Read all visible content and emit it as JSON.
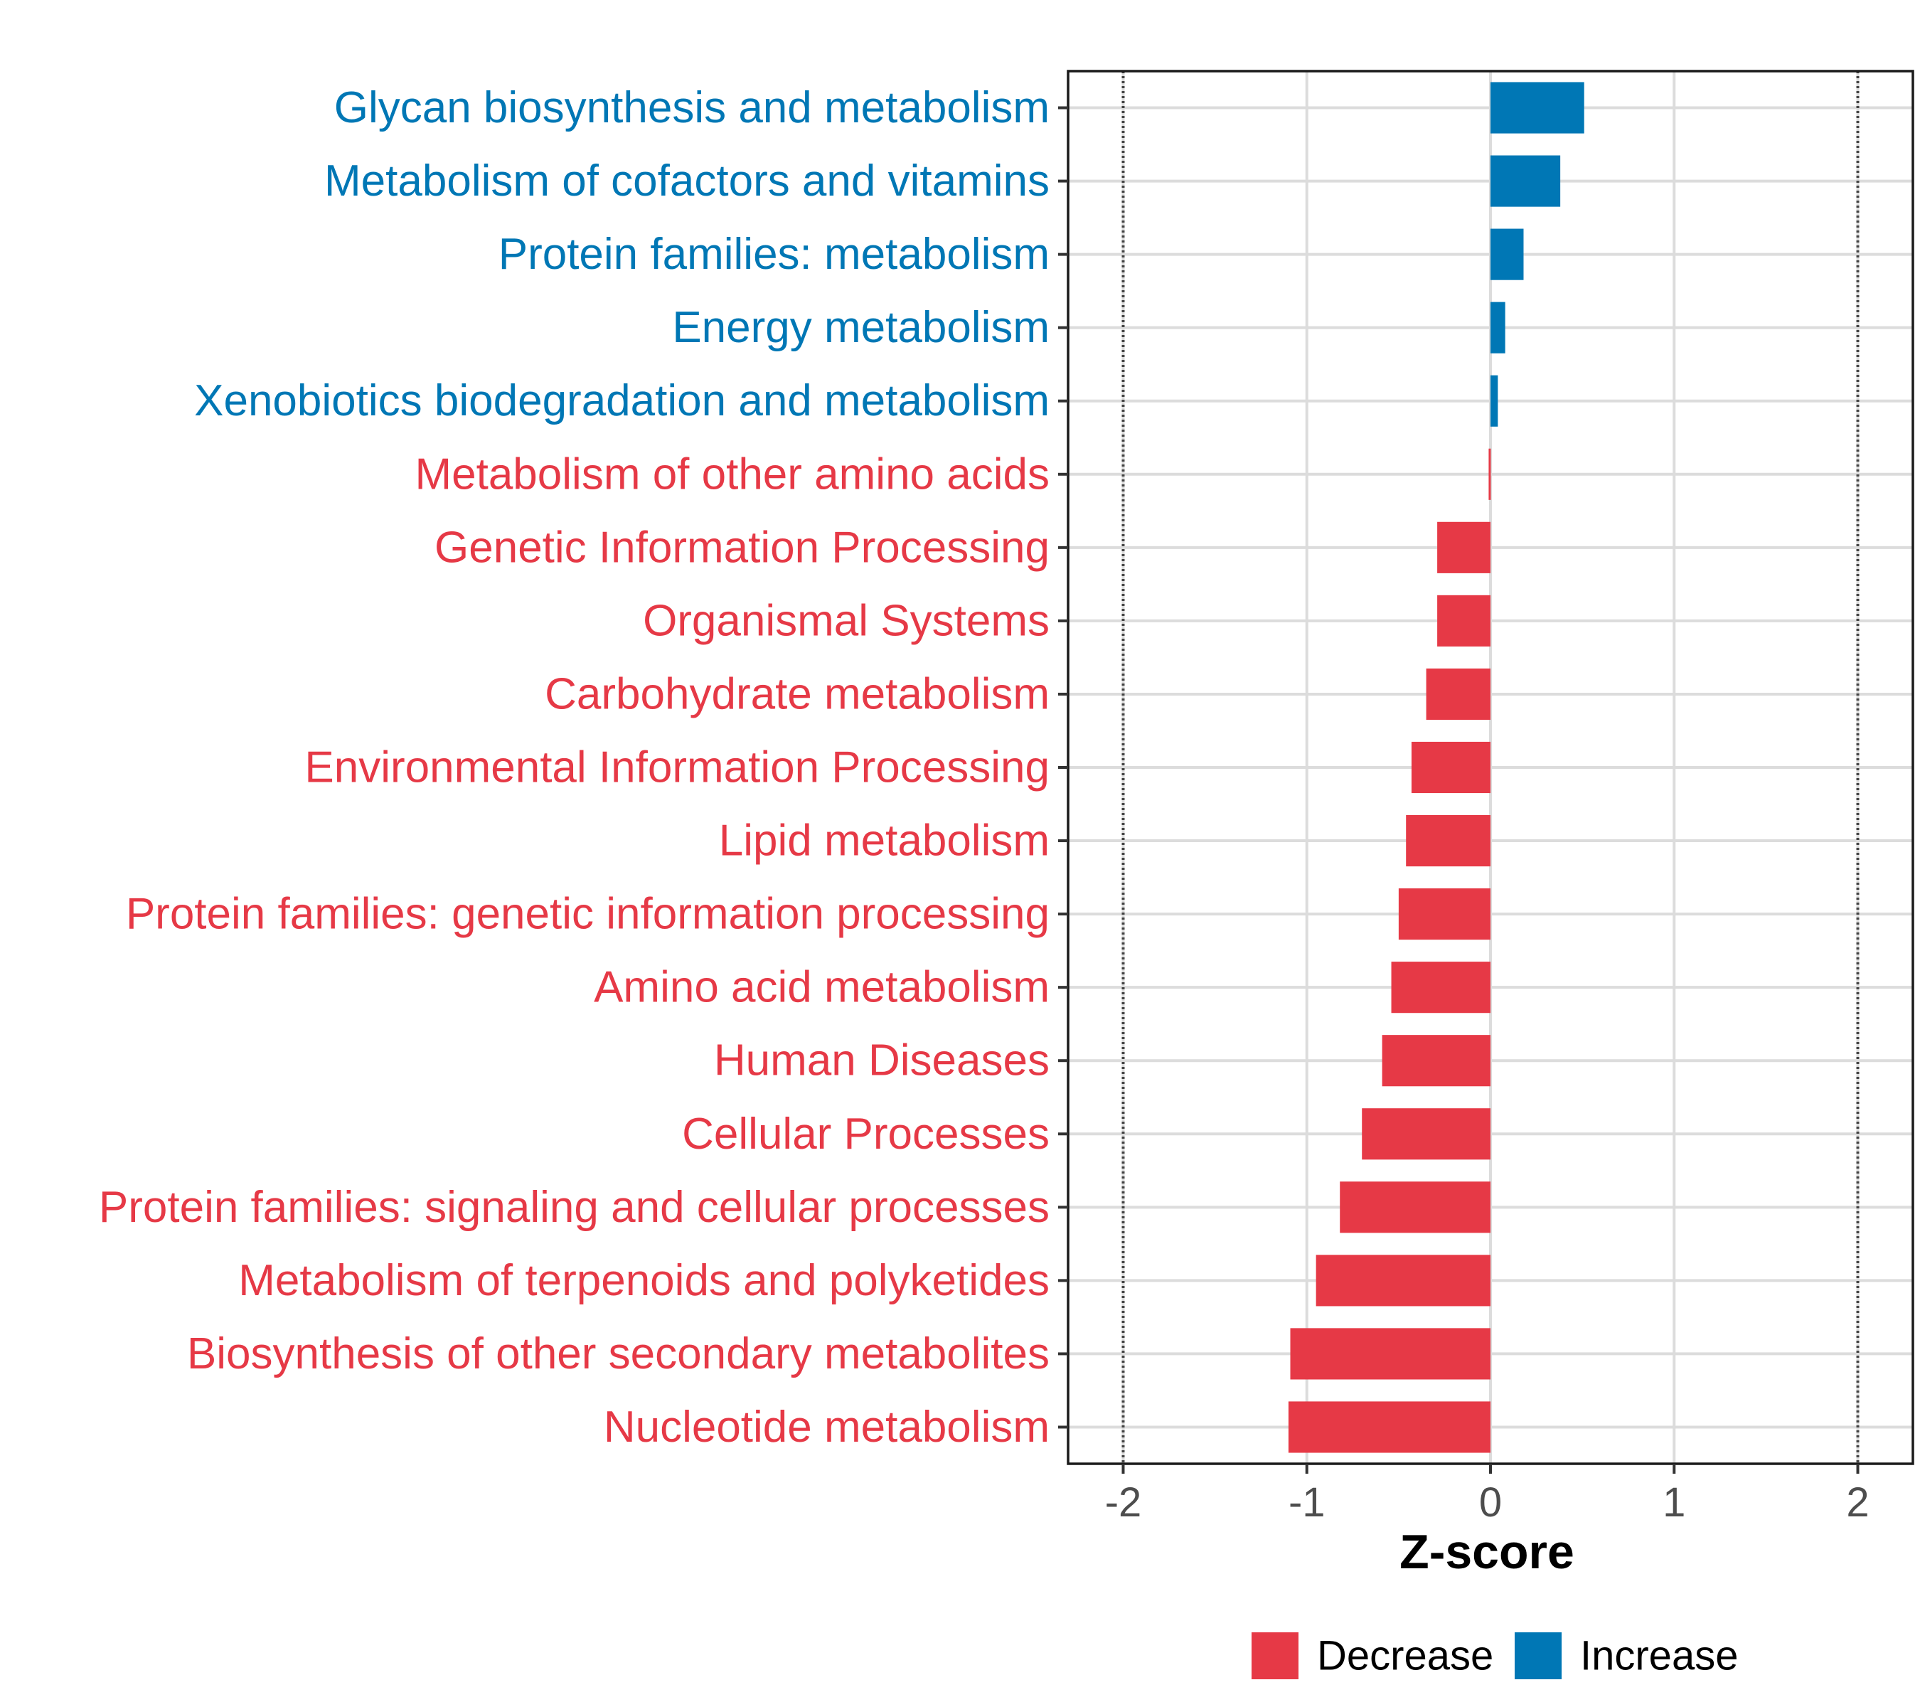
{
  "colors": {
    "increase": "#0077B5",
    "decrease": "#E63946",
    "grid": "#DCDCDC",
    "frame": "#1A1A1A",
    "ref_line": "#444444"
  },
  "chart_data": {
    "type": "bar",
    "orientation": "horizontal",
    "title": "",
    "xlabel": "Z-score",
    "ylabel": "",
    "xlim": [
      -2.3,
      2.3
    ],
    "xticks": [
      -2,
      -1,
      0,
      1,
      2
    ],
    "xtick_labels": [
      "-2",
      "-1",
      "0",
      "1",
      "2"
    ],
    "reference_lines": [
      -2,
      2
    ],
    "grid": true,
    "legend_position": "bottom",
    "legend": [
      {
        "name": "Decrease",
        "color_key": "decrease"
      },
      {
        "name": "Increase",
        "color_key": "increase"
      }
    ],
    "categories": [
      "Glycan biosynthesis and metabolism",
      "Metabolism of cofactors and vitamins",
      "Protein families: metabolism",
      "Energy metabolism",
      "Xenobiotics biodegradation and metabolism",
      "Metabolism of other amino acids",
      "Genetic Information Processing",
      "Organismal Systems",
      "Carbohydrate metabolism",
      "Environmental Information Processing",
      "Lipid metabolism",
      "Protein families: genetic information processing",
      "Amino acid metabolism",
      "Human Diseases",
      "Cellular Processes",
      "Protein families: signaling and cellular processes",
      "Metabolism of terpenoids and polyketides",
      "Biosynthesis of other secondary metabolites",
      "Nucleotide metabolism"
    ],
    "values": [
      0.51,
      0.38,
      0.18,
      0.08,
      0.04,
      -0.01,
      -0.29,
      -0.29,
      -0.35,
      -0.43,
      -0.46,
      -0.5,
      -0.54,
      -0.59,
      -0.7,
      -0.82,
      -0.95,
      -1.09,
      -1.1
    ],
    "groups": [
      "Increase",
      "Increase",
      "Increase",
      "Increase",
      "Increase",
      "Decrease",
      "Decrease",
      "Decrease",
      "Decrease",
      "Decrease",
      "Decrease",
      "Decrease",
      "Decrease",
      "Decrease",
      "Decrease",
      "Decrease",
      "Decrease",
      "Decrease",
      "Decrease"
    ]
  }
}
